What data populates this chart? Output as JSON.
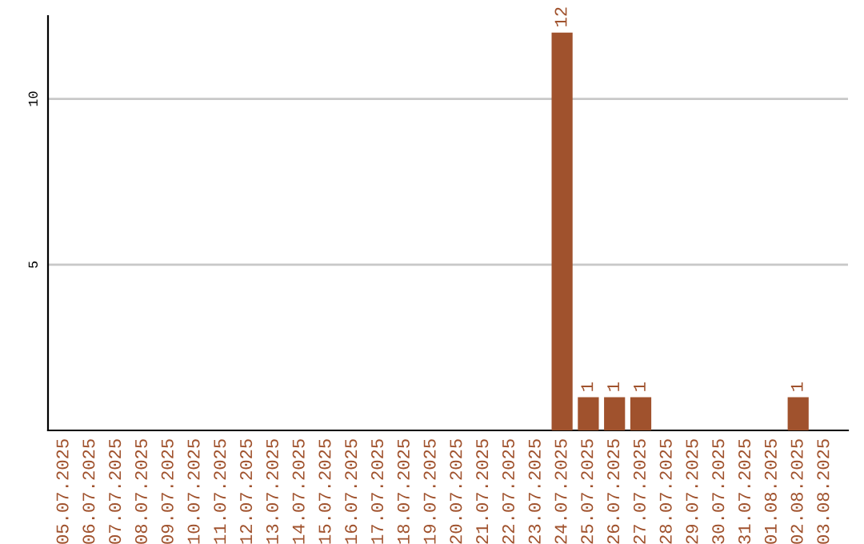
{
  "chart_data": {
    "type": "bar",
    "categories": [
      "05.07.2025",
      "06.07.2025",
      "07.07.2025",
      "08.07.2025",
      "09.07.2025",
      "10.07.2025",
      "11.07.2025",
      "12.07.2025",
      "13.07.2025",
      "14.07.2025",
      "15.07.2025",
      "16.07.2025",
      "17.07.2025",
      "18.07.2025",
      "19.07.2025",
      "20.07.2025",
      "21.07.2025",
      "22.07.2025",
      "23.07.2025",
      "24.07.2025",
      "25.07.2025",
      "26.07.2025",
      "27.07.2025",
      "28.07.2025",
      "29.07.2025",
      "30.07.2025",
      "31.07.2025",
      "01.08.2025",
      "02.08.2025",
      "03.08.2025"
    ],
    "values": [
      0,
      0,
      0,
      0,
      0,
      0,
      0,
      0,
      0,
      0,
      0,
      0,
      0,
      0,
      0,
      0,
      0,
      0,
      0,
      12,
      1,
      1,
      1,
      0,
      0,
      0,
      0,
      0,
      1,
      0
    ],
    "value_labels": [
      null,
      null,
      null,
      null,
      null,
      null,
      null,
      null,
      null,
      null,
      null,
      null,
      null,
      null,
      null,
      null,
      null,
      null,
      null,
      "12",
      "1",
      "1",
      "1",
      null,
      null,
      null,
      null,
      null,
      "1",
      null
    ],
    "color": "#a0522d",
    "ylim": [
      0,
      12.5
    ],
    "yticks": [
      5,
      10
    ],
    "grid": "y"
  }
}
